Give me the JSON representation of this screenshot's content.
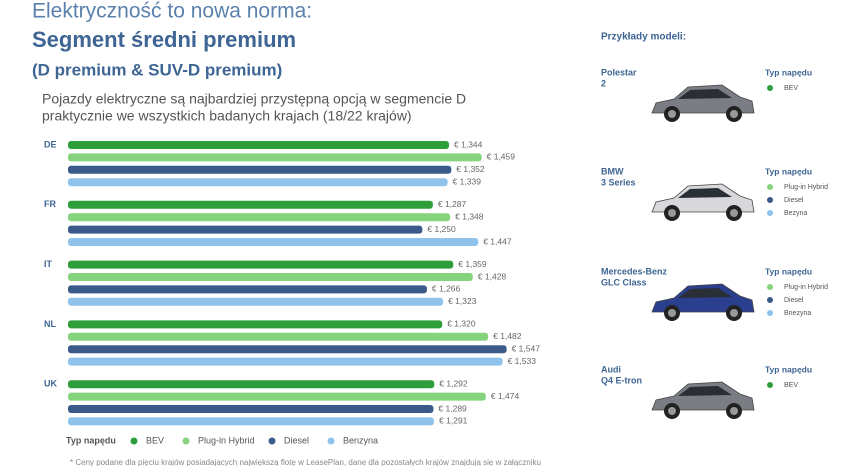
{
  "slide": {
    "heading": "Elektryczność to nowa norma:",
    "title": "Segment średni premium",
    "subtitle": "(D premium & SUV-D premium)",
    "lead": [
      "Pojazdy elektryczne są najbardziej przystępną opcją w segmencie D",
      "praktycznie we wszystkich badanych krajach (18/22 krajów)"
    ],
    "legend_title": "Typ napędu",
    "footnote": "* Ceny podane dla pięciu krajów posiadających największą flotę w LeasePlan, dane dla pozostałych krajów znajdują się w załączniku",
    "models_title": "Przykłady modeli:",
    "models": [
      {
        "name": [
          "Polestar",
          "2"
        ],
        "drive_title": "Typ napędu",
        "drives": [
          {
            "label": "BEV",
            "color": "#2e9e3a"
          }
        ]
      },
      {
        "name": [
          "BMW",
          "3 Series"
        ],
        "drive_title": "Typ napędu",
        "drives": [
          {
            "label": "Plug-in Hybrid",
            "color": "#86d37e"
          },
          {
            "label": "Diesel",
            "color": "#3a5a8a"
          },
          {
            "label": "Bezyna",
            "color": "#8fc3ec"
          }
        ]
      },
      {
        "name": [
          "Mercedes-Benz",
          "GLC Class"
        ],
        "drive_title": "Typ napędu",
        "drives": [
          {
            "label": "Plug-in Hybrid",
            "color": "#86d37e"
          },
          {
            "label": "Diesel",
            "color": "#3a5a8a"
          },
          {
            "label": "Bnezyna",
            "color": "#8fc3ec"
          }
        ]
      },
      {
        "name": [
          "Audi",
          "Q4 E-tron"
        ],
        "drive_title": "Typ napędu",
        "drives": [
          {
            "label": "BEV",
            "color": "#2e9e3a"
          }
        ]
      }
    ]
  },
  "chart_data": {
    "type": "bar",
    "orientation": "horizontal",
    "categories": [
      "DE",
      "FR",
      "IT",
      "NL",
      "UK"
    ],
    "series": [
      {
        "name": "BEV",
        "color": "#2e9e3a",
        "values": [
          1344,
          1287,
          1359,
          1320,
          1292
        ],
        "value_labels": [
          "€ 1,344",
          "€ 1,287",
          "€ 1,359",
          "€ 1,320",
          "€ 1,292"
        ]
      },
      {
        "name": "Plug-in Hybrid",
        "color": "#86d37e",
        "values": [
          1459,
          1348,
          1428,
          1482,
          1474
        ],
        "value_labels": [
          "€ 1,459",
          "€ 1,348",
          "€ 1,428",
          "€ 1,482",
          "€ 1,474"
        ]
      },
      {
        "name": "Diesel",
        "color": "#3a5a8a",
        "values": [
          1352,
          1250,
          1266,
          1547,
          1289
        ],
        "value_labels": [
          "€ 1,352",
          "€ 1,250",
          "€ 1,266",
          "€ 1,547",
          "€ 1,289"
        ]
      },
      {
        "name": "Benzyna",
        "color": "#8fc3ec",
        "values": [
          1339,
          1447,
          1323,
          1533,
          1291
        ],
        "value_labels": [
          "€ 1,339",
          "€ 1,447",
          "€ 1,323",
          "€ 1,533",
          "€ 1,291"
        ]
      }
    ]
  }
}
